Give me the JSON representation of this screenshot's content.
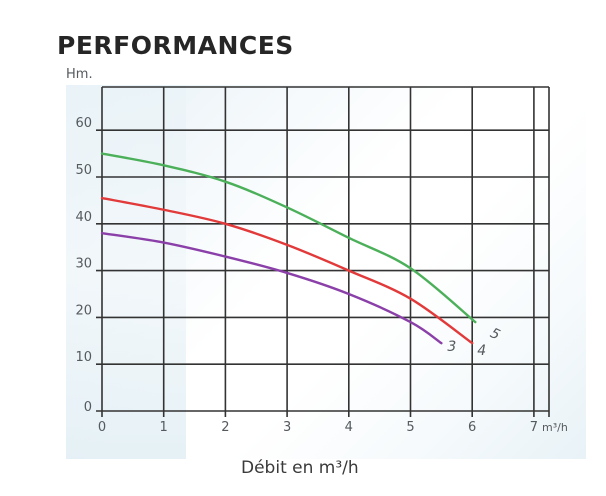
{
  "title": "PERFORMANCES",
  "y_unit_label": "Hm.",
  "x_unit_label": "m³/h",
  "x_axis_title": "Débit en m³/h",
  "colors": {
    "curve_3": "#8b3fa8",
    "curve_4": "#e23a3a",
    "curve_5": "#4cb05a",
    "grid": "#333333",
    "tick_text": "#555a5e"
  },
  "chart_data": {
    "type": "line",
    "title": "PERFORMANCES",
    "xlabel": "Débit en m³/h",
    "ylabel": "Hm.",
    "xlim": [
      0,
      7.25
    ],
    "ylim": [
      0,
      65
    ],
    "x_ticks": [
      "0",
      "1",
      "2",
      "3",
      "4",
      "5",
      "6",
      "7"
    ],
    "y_ticks": [
      "0",
      "10",
      "20",
      "30",
      "40",
      "50",
      "60"
    ],
    "grid": true,
    "legend": "inline labels at curve ends",
    "series": [
      {
        "name": "5",
        "x": [
          0,
          1,
          2,
          3,
          4,
          5,
          6.05
        ],
        "values": [
          55,
          52.5,
          49,
          43.5,
          37,
          30.5,
          19
        ]
      },
      {
        "name": "4",
        "x": [
          0,
          1,
          2,
          3,
          4,
          5,
          6.0
        ],
        "values": [
          45.5,
          43,
          40,
          35.5,
          30,
          24,
          14.5
        ]
      },
      {
        "name": "3",
        "x": [
          0,
          1,
          2,
          3,
          4,
          5,
          5.5
        ],
        "values": [
          38,
          36,
          33,
          29.5,
          25,
          19,
          14.5
        ]
      }
    ]
  }
}
